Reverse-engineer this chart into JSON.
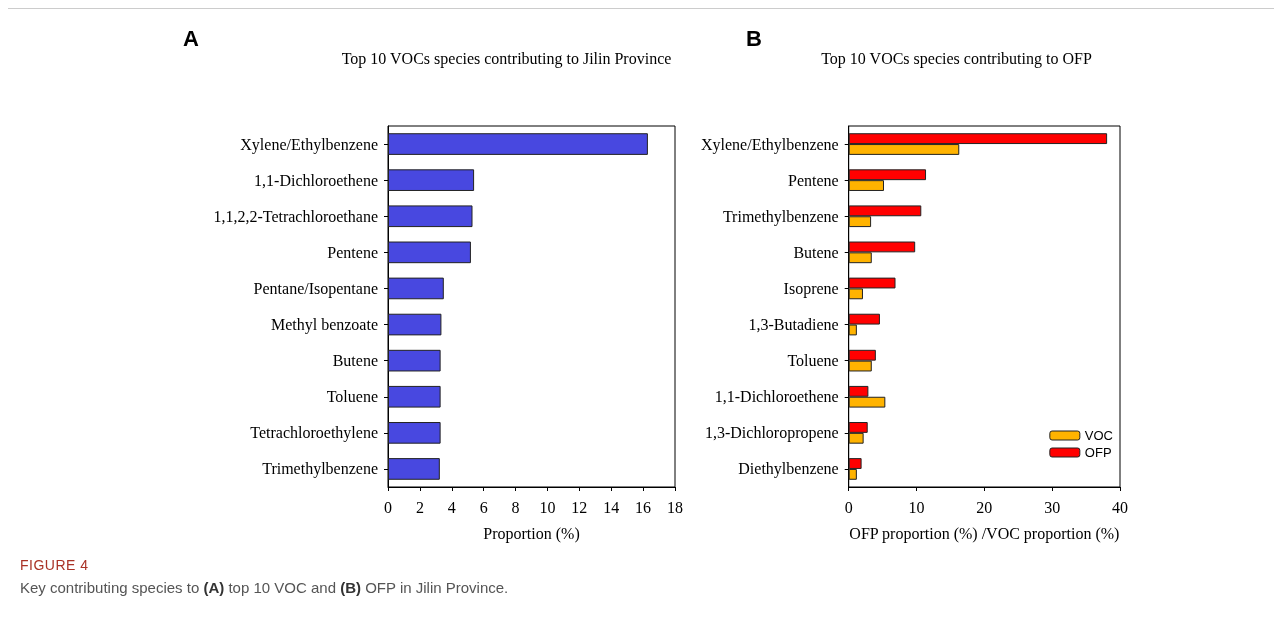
{
  "chart_data": [
    {
      "type": "bar",
      "orientation": "horizontal",
      "title": "Top 10 VOCs species contributing to Jilin Province",
      "xlabel": "Proportion (%)",
      "annotations": [
        "A",
        "FIGURE 4",
        "Key contributing species to (A) top 10 VOC and (B) OFP in Jilin Province."
      ],
      "categories": [
        "Xylene/Ethylbenzene",
        "1,1-Dichloroethene",
        "1,1,2,2-Tetrachloroethane",
        "Pentene",
        "Pentane/Isopentane",
        "Methyl benzoate",
        "Butene",
        "Toluene",
        "Tetrachloroethylene",
        "Trimethylbenzene"
      ],
      "values": [
        16.3,
        5.4,
        5.3,
        5.2,
        3.5,
        3.35,
        3.3,
        3.3,
        3.3,
        3.25
      ],
      "color": "#4848e0",
      "xlim": [
        0,
        18
      ],
      "xticks": [
        0,
        2,
        4,
        6,
        8,
        10,
        12,
        14,
        16,
        18
      ],
      "grid": false,
      "legend": false
    },
    {
      "type": "bar",
      "orientation": "horizontal",
      "title": "Top 10 VOCs species contributing to OFP",
      "xlabel": "OFP proportion (%) /VOC proportion (%)",
      "annotations": [
        "B"
      ],
      "categories": [
        "Xylene/Ethylbenzene",
        "Pentene",
        "Trimethylbenzene",
        "Butene",
        "Isoprene",
        "1,3-Butadiene",
        "Toluene",
        "1,1-Dichloroethene",
        "1,3-Dichloropropene",
        "Diethylbenzene"
      ],
      "series": [
        {
          "name": "VOC",
          "color": "#ffb300",
          "values": [
            16.3,
            5.2,
            3.3,
            3.4,
            2.1,
            1.2,
            3.4,
            5.4,
            2.2,
            1.2
          ]
        },
        {
          "name": "OFP",
          "color": "#ff0000",
          "values": [
            38.1,
            11.4,
            10.7,
            9.8,
            6.9,
            4.6,
            4.0,
            2.9,
            2.8,
            1.9
          ]
        }
      ],
      "xlim": [
        0,
        40
      ],
      "xticks": [
        0,
        10,
        20,
        30,
        40
      ],
      "grid": false,
      "legend": "bottom right"
    }
  ]
}
